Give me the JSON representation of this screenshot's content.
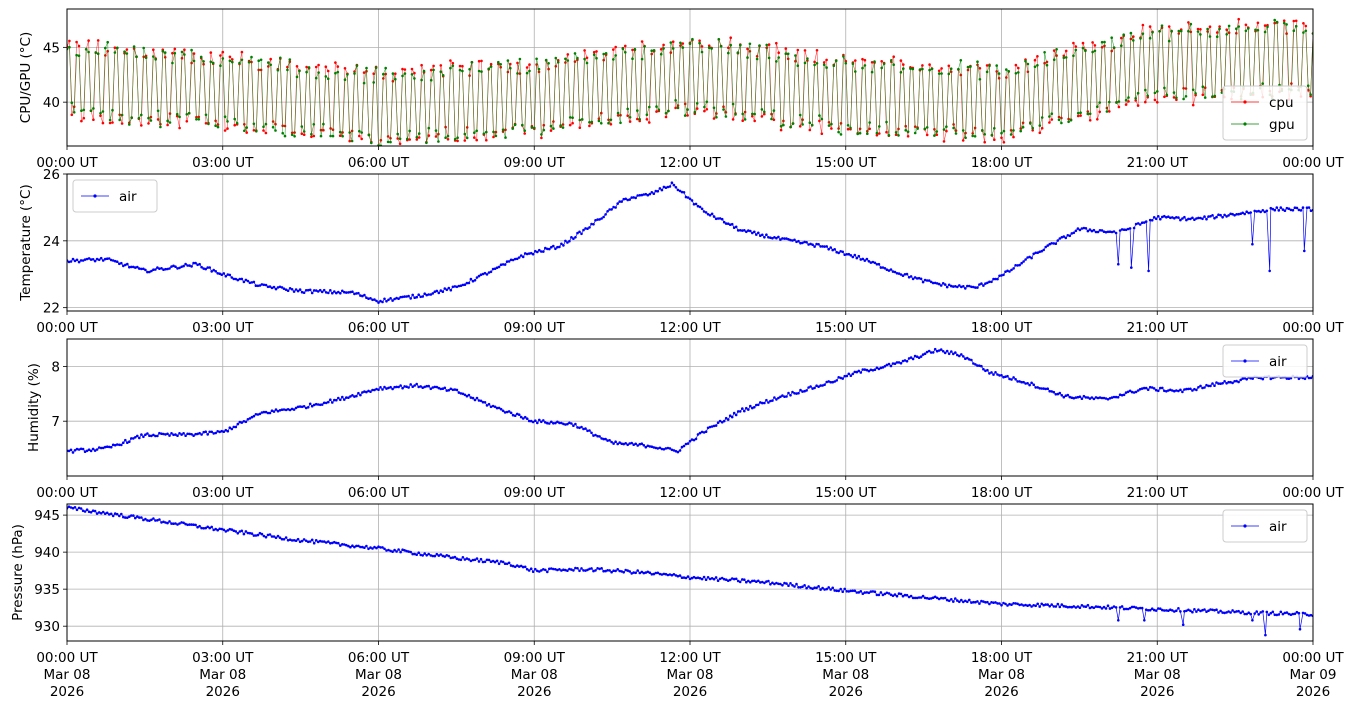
{
  "chart_data": [
    {
      "type": "line",
      "ylabel": "CPU/GPU (°C)",
      "ylim": [
        36,
        48.5
      ],
      "yticks": [
        40,
        45
      ],
      "xlim": [
        "2026-03-08T00:00",
        "2026-03-09T00:00"
      ],
      "xticks": [
        "00:00 UT",
        "03:00 UT",
        "06:00 UT",
        "09:00 UT",
        "12:00 UT",
        "15:00 UT",
        "18:00 UT",
        "21:00 UT",
        "00:00 UT"
      ],
      "grid": true,
      "legend": "lower-right",
      "series": [
        {
          "name": "cpu",
          "color": "#ff0000",
          "pattern": "oscillating",
          "base": {
            "x": [
              "00:00",
              "03:00",
              "06:00",
              "09:00",
              "12:00",
              "15:00",
              "18:00",
              "21:00",
              "24:00"
            ],
            "y": [
              42.0,
              41.0,
              39.5,
              40.5,
              42.5,
              40.5,
              40.0,
              43.5,
              44.0
            ]
          },
          "amplitude": 3.3,
          "samples": 520
        },
        {
          "name": "gpu",
          "color": "#008000",
          "pattern": "oscillating",
          "base": {
            "x": [
              "00:00",
              "03:00",
              "06:00",
              "09:00",
              "12:00",
              "15:00",
              "18:00",
              "21:00",
              "24:00"
            ],
            "y": [
              42.0,
              41.0,
              39.5,
              40.5,
              42.5,
              40.5,
              40.0,
              43.5,
              44.0
            ]
          },
          "amplitude": 3.1,
          "samples": 520
        }
      ]
    },
    {
      "type": "line",
      "ylabel": "Temperature (°C)",
      "ylim": [
        21.9,
        26.0
      ],
      "yticks": [
        22,
        24,
        26
      ],
      "xlim": [
        "2026-03-08T00:00",
        "2026-03-09T00:00"
      ],
      "xticks": [
        "00:00 UT",
        "03:00 UT",
        "06:00 UT",
        "09:00 UT",
        "12:00 UT",
        "15:00 UT",
        "18:00 UT",
        "21:00 UT",
        "00:00 UT"
      ],
      "grid": true,
      "legend": "upper-left",
      "series": [
        {
          "name": "air",
          "color": "#0000ff",
          "x": [
            "00:00",
            "00:45",
            "01:30",
            "02:30",
            "03:00",
            "03:45",
            "04:30",
            "05:30",
            "06:00",
            "06:45",
            "07:30",
            "08:15",
            "08:45",
            "09:30",
            "10:00",
            "10:45",
            "11:15",
            "11:40",
            "12:15",
            "13:00",
            "13:45",
            "14:30",
            "15:15",
            "16:00",
            "16:30",
            "17:00",
            "17:30",
            "18:00",
            "18:45",
            "19:30",
            "20:15",
            "21:00",
            "21:45",
            "22:30",
            "23:15",
            "24:00"
          ],
          "y": [
            23.4,
            23.45,
            23.1,
            23.3,
            23.0,
            22.65,
            22.5,
            22.45,
            22.2,
            22.35,
            22.6,
            23.15,
            23.55,
            23.85,
            24.35,
            25.25,
            25.4,
            25.7,
            24.9,
            24.3,
            24.05,
            23.85,
            23.5,
            23.05,
            22.8,
            22.65,
            22.6,
            22.95,
            23.7,
            24.35,
            24.25,
            24.7,
            24.65,
            24.8,
            24.95,
            24.95
          ],
          "dips": [
            {
              "x": "20:15",
              "y": 23.3
            },
            {
              "x": "20:30",
              "y": 23.2
            },
            {
              "x": "20:50",
              "y": 23.1
            },
            {
              "x": "22:50",
              "y": 23.9
            },
            {
              "x": "23:10",
              "y": 23.1
            },
            {
              "x": "23:50",
              "y": 23.7
            }
          ]
        }
      ]
    },
    {
      "type": "line",
      "ylabel": "Humidity (%)",
      "ylim": [
        6.0,
        8.5
      ],
      "yticks": [
        7,
        8
      ],
      "xlim": [
        "2026-03-08T00:00",
        "2026-03-09T00:00"
      ],
      "xticks": [
        "00:00 UT",
        "03:00 UT",
        "06:00 UT",
        "09:00 UT",
        "12:00 UT",
        "15:00 UT",
        "18:00 UT",
        "21:00 UT",
        "00:00 UT"
      ],
      "grid": true,
      "legend": "upper-right",
      "series": [
        {
          "name": "air",
          "color": "#0000ff",
          "x": [
            "00:00",
            "00:45",
            "01:30",
            "02:15",
            "03:00",
            "03:45",
            "04:30",
            "05:15",
            "06:00",
            "06:45",
            "07:30",
            "08:15",
            "09:00",
            "09:45",
            "10:30",
            "11:15",
            "11:45",
            "12:15",
            "13:00",
            "13:45",
            "14:30",
            "15:15",
            "16:00",
            "16:45",
            "17:15",
            "17:45",
            "18:30",
            "19:15",
            "20:00",
            "20:45",
            "21:30",
            "22:15",
            "23:00",
            "24:00"
          ],
          "y": [
            6.45,
            6.5,
            6.75,
            6.75,
            6.8,
            7.15,
            7.25,
            7.4,
            7.6,
            7.65,
            7.55,
            7.25,
            7.0,
            6.95,
            6.6,
            6.55,
            6.45,
            6.8,
            7.2,
            7.45,
            7.65,
            7.9,
            8.05,
            8.3,
            8.2,
            7.9,
            7.7,
            7.45,
            7.4,
            7.6,
            7.55,
            7.7,
            7.8,
            7.8
          ]
        }
      ]
    },
    {
      "type": "line",
      "ylabel": "Pressure (hPa)",
      "ylim": [
        928.0,
        946.5
      ],
      "yticks": [
        930,
        935,
        940,
        945
      ],
      "xlim": [
        "2026-03-08T00:00",
        "2026-03-09T00:00"
      ],
      "xticks": [
        "00:00 UT\nMar 08\n2026",
        "03:00 UT\nMar 08\n2026",
        "06:00 UT\nMar 08\n2026",
        "09:00 UT\nMar 08\n2026",
        "12:00 UT\nMar 08\n2026",
        "15:00 UT\nMar 08\n2026",
        "18:00 UT\nMar 08\n2026",
        "21:00 UT\nMar 08\n2026",
        "00:00 UT\nMar 09\n2026"
      ],
      "grid": true,
      "legend": "upper-right",
      "series": [
        {
          "name": "air",
          "color": "#0000ff",
          "x": [
            "00:00",
            "01:30",
            "03:00",
            "04:30",
            "06:00",
            "07:30",
            "08:30",
            "09:00",
            "10:00",
            "11:00",
            "12:00",
            "13:30",
            "15:00",
            "16:30",
            "18:00",
            "19:30",
            "21:00",
            "22:30",
            "24:00"
          ],
          "y": [
            946.0,
            944.5,
            943.0,
            941.6,
            940.5,
            939.2,
            938.5,
            937.5,
            937.7,
            937.3,
            936.6,
            935.9,
            934.8,
            933.9,
            933.0,
            932.7,
            932.3,
            931.9,
            931.6
          ],
          "dips": [
            {
              "x": "20:15",
              "y": 930.8
            },
            {
              "x": "20:45",
              "y": 930.8
            },
            {
              "x": "21:30",
              "y": 930.2
            },
            {
              "x": "22:50",
              "y": 930.8
            },
            {
              "x": "23:05",
              "y": 928.8
            },
            {
              "x": "23:45",
              "y": 929.6
            }
          ]
        }
      ]
    }
  ]
}
